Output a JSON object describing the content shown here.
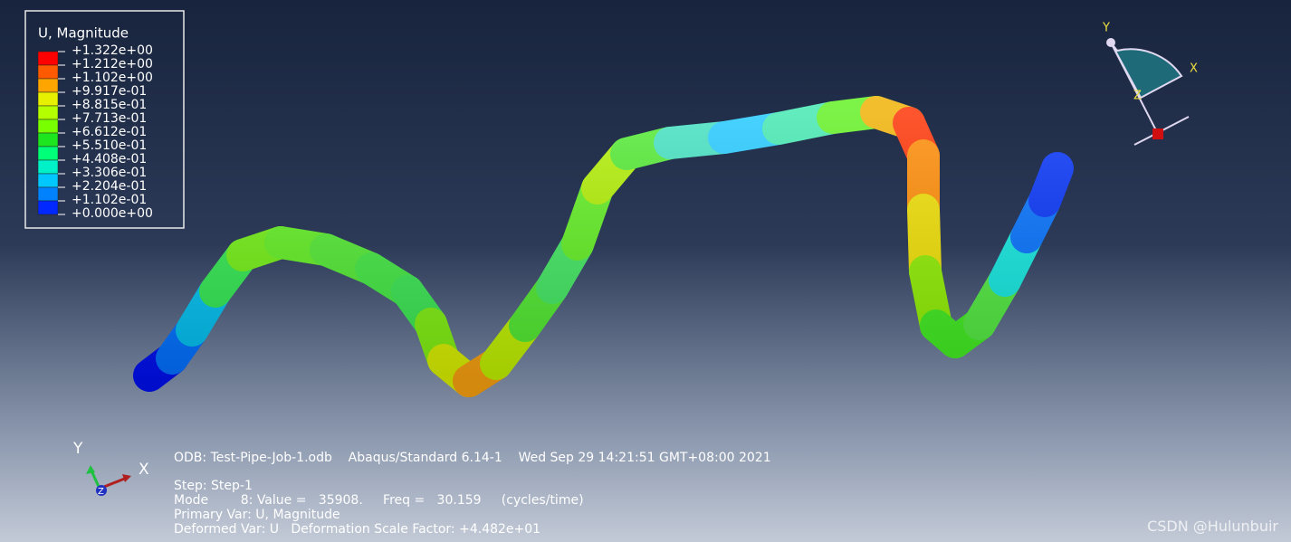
{
  "legend": {
    "title": "U, Magnitude",
    "labels": [
      "+1.322e+00",
      "+1.212e+00",
      "+1.102e+00",
      "+9.917e-01",
      "+8.815e-01",
      "+7.713e-01",
      "+6.612e-01",
      "+5.510e-01",
      "+4.408e-01",
      "+3.306e-01",
      "+2.204e-01",
      "+1.102e-01",
      "+0.000e+00"
    ]
  },
  "triad_top": {
    "y": "Y",
    "x": "X",
    "z": "Z"
  },
  "triad_bottom": {
    "y": "Y",
    "x": "X",
    "z": "Z"
  },
  "info": {
    "header": "ODB: Test-Pipe-Job-1.odb    Abaqus/Standard 6.14-1    Wed Sep 29 14:21:51 GMT+08:00 2021",
    "lines": [
      "Step: Step-1",
      "Mode        8: Value =   35908.     Freq =   30.159     (cycles/time)",
      "Primary Var: U, Magnitude",
      "Deformed Var: U   Deformation Scale Factor: +4.482e+01"
    ]
  },
  "watermark": "CSDN @Hulunbuir"
}
